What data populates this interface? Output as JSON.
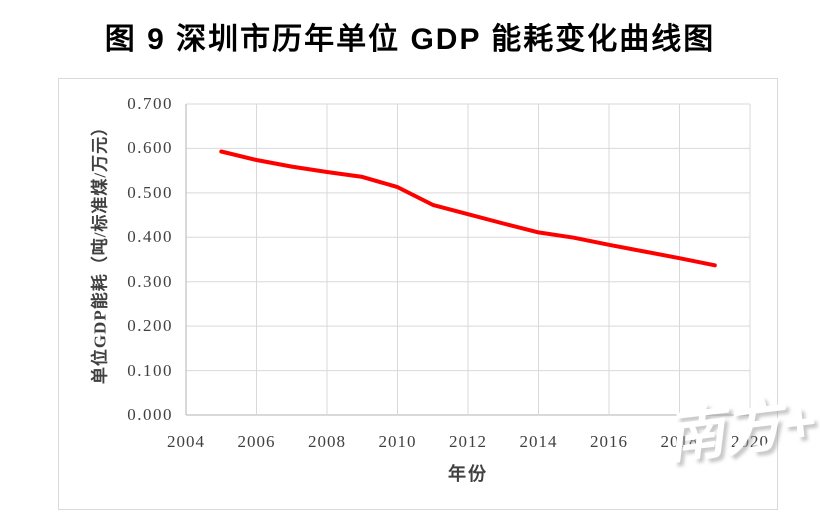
{
  "chart_data": {
    "type": "line",
    "title": "图 9 深圳市历年单位 GDP 能耗变化曲线图",
    "xlabel": "年份",
    "ylabel": "单位GDP能耗（吨/标准煤/万元）",
    "x": [
      2005,
      2006,
      2007,
      2008,
      2009,
      2010,
      2011,
      2012,
      2013,
      2014,
      2015,
      2016,
      2017,
      2018,
      2019
    ],
    "series": [
      {
        "name": "单位GDP能耗",
        "color": "#ff0000",
        "values": [
          0.593,
          0.574,
          0.559,
          0.547,
          0.536,
          0.513,
          0.473,
          0.452,
          0.431,
          0.411,
          0.399,
          0.383,
          0.368,
          0.353,
          0.337
        ]
      }
    ],
    "xlim": [
      2004,
      2020
    ],
    "ylim": [
      0.0,
      0.7
    ],
    "x_tick_labels": [
      "2004",
      "2006",
      "2008",
      "2010",
      "2012",
      "2014",
      "2016",
      "2018",
      "2020"
    ],
    "y_tick_labels": [
      "0.000",
      "0.100",
      "0.200",
      "0.300",
      "0.400",
      "0.500",
      "0.600",
      "0.700"
    ],
    "grid": true,
    "legend": false
  },
  "watermark": {
    "text": "南方+"
  },
  "colors": {
    "line": "#ff0000",
    "gridline": "#d9d9d9",
    "axis_line": "#b3b3b3",
    "tick_text": "#404040",
    "title_text": "#000000",
    "frame_border": "#d9d9d9",
    "background": "#ffffff"
  }
}
